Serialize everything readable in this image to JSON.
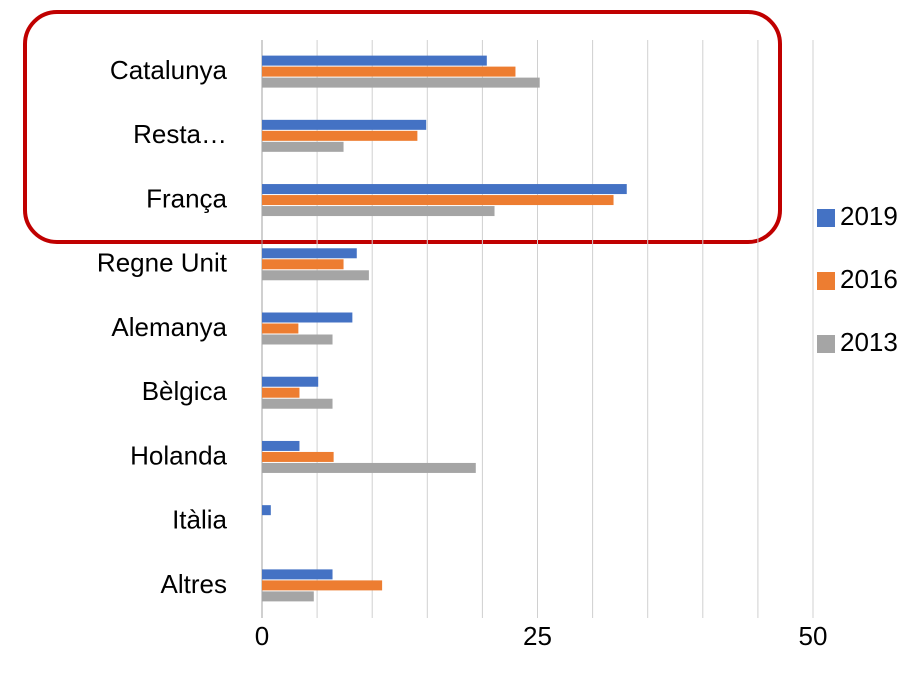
{
  "chart_data": {
    "type": "hbar",
    "categories": [
      "Catalunya",
      "Resta…",
      "França",
      "Regne Unit",
      "Alemanya",
      "Bèlgica",
      "Holanda",
      "Itàlia",
      "Altres"
    ],
    "series": [
      {
        "name": "2019",
        "color": "#4472c4",
        "values": [
          20.4,
          14.9,
          33.1,
          8.6,
          8.2,
          5.1,
          3.4,
          0.8,
          6.4
        ]
      },
      {
        "name": "2016",
        "color": "#ed7d31",
        "values": [
          23,
          14.1,
          31.9,
          7.4,
          3.3,
          3.4,
          6.5,
          0,
          10.9
        ]
      },
      {
        "name": "2013",
        "color": "#a5a5a5",
        "values": [
          25.2,
          7.4,
          21.1,
          9.7,
          6.4,
          6.4,
          19.4,
          0,
          4.7
        ]
      }
    ],
    "xlim": [
      0,
      50
    ],
    "xticks": [
      0,
      25,
      50
    ],
    "xgrid": [
      0,
      5,
      10,
      15,
      20,
      25,
      30,
      35,
      40,
      45,
      50
    ],
    "grid": true,
    "legend": "right"
  }
}
